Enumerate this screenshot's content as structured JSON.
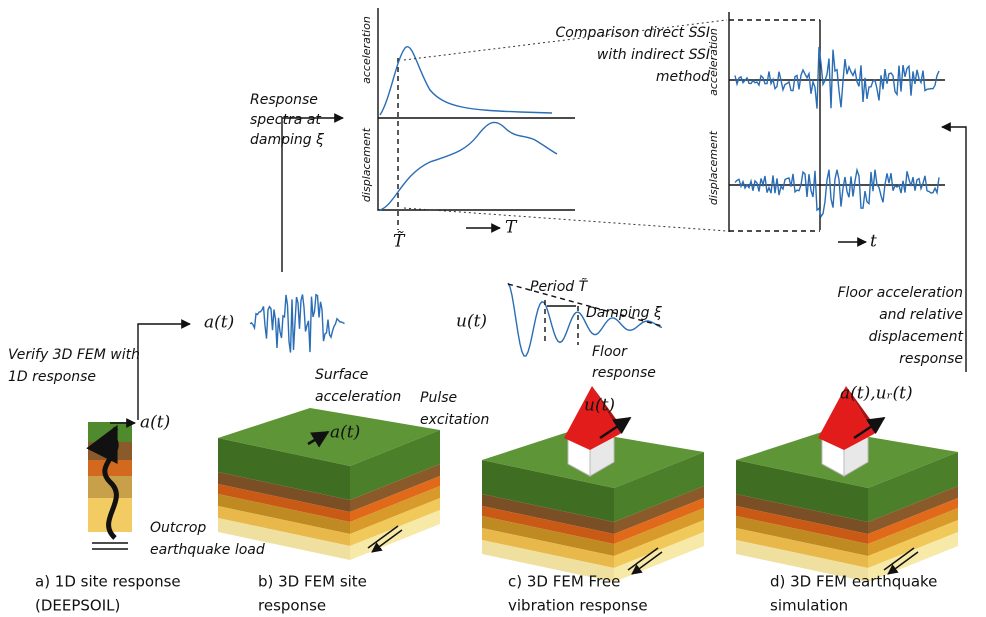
{
  "spectra": {
    "annotation": [
      "Response",
      "spectra at",
      "damping ξ"
    ],
    "y_labels": [
      "acceleration",
      "displacement"
    ],
    "x_marker": "T̃",
    "x_label": "T"
  },
  "comparison": [
    "Comparison direct SSI",
    "with indirect SSI",
    "method"
  ],
  "time_history": {
    "y_labels": [
      "acceleration",
      "displacement"
    ],
    "x_label": "t"
  },
  "site_1d": {
    "verify": [
      "Verify 3D FEM with",
      "1D response"
    ],
    "input": "a(t)",
    "load": [
      "Outcrop",
      "earthquake load"
    ],
    "caption": [
      "a) 1D site response",
      "(DEEPSOIL)"
    ]
  },
  "site_3d": {
    "output": "a(t)",
    "surface": [
      "Surface",
      "acceleration"
    ],
    "input": "a(t)",
    "caption": [
      "b) 3D FEM site",
      "response"
    ]
  },
  "free_vibration": {
    "response": "u(t)",
    "period": "Period T̃",
    "damping": "Damping ξ",
    "floor": [
      "Floor",
      "response"
    ],
    "pulse": [
      "Pulse",
      "excitation"
    ],
    "input": "u(t)",
    "caption": [
      "c) 3D FEM Free",
      "vibration response"
    ]
  },
  "earthquake": {
    "floor": [
      "Floor acceleration",
      "and relative",
      "displacement",
      "response"
    ],
    "output": "a(t),uᵣ(t)",
    "caption": [
      "d) 3D FEM earthquake",
      "simulation"
    ]
  }
}
